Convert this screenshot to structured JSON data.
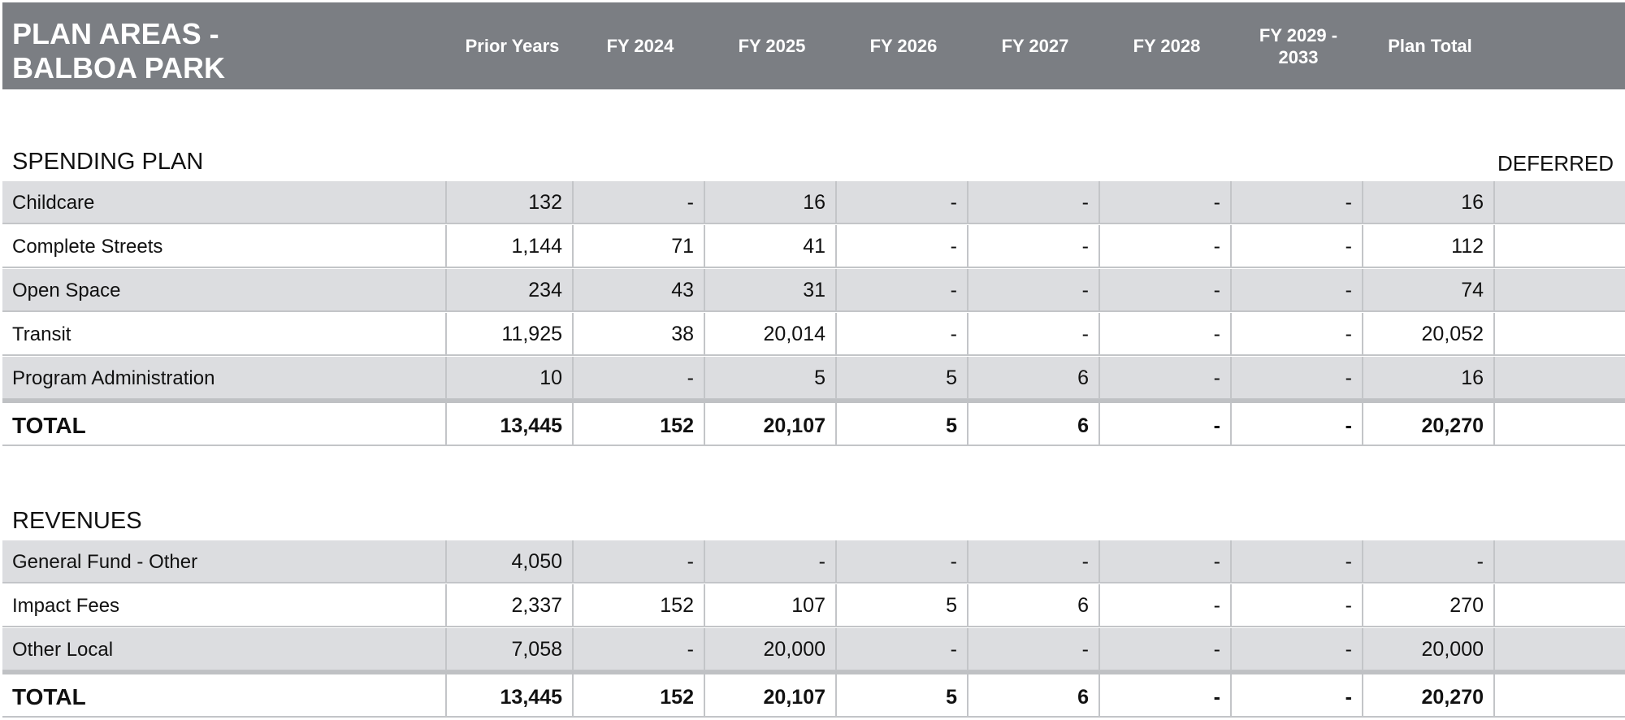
{
  "header": {
    "title_line1": "PLAN AREAS -",
    "title_line2": "BALBOA PARK",
    "columns": [
      "Prior Years",
      "FY 2024",
      "FY 2025",
      "FY 2026",
      "FY 2027",
      "FY 2028",
      "FY 2029 -\n2033",
      "Plan Total"
    ]
  },
  "spending": {
    "title": "SPENDING PLAN",
    "deferred": "DEFERRED",
    "rows": [
      {
        "label": "Childcare",
        "values": [
          "132",
          "-",
          "16",
          "-",
          "-",
          "-",
          "-",
          "16",
          ""
        ]
      },
      {
        "label": "Complete Streets",
        "values": [
          "1,144",
          "71",
          "41",
          "-",
          "-",
          "-",
          "-",
          "112",
          ""
        ]
      },
      {
        "label": "Open Space",
        "values": [
          "234",
          "43",
          "31",
          "-",
          "-",
          "-",
          "-",
          "74",
          ""
        ]
      },
      {
        "label": "Transit",
        "values": [
          "11,925",
          "38",
          "20,014",
          "-",
          "-",
          "-",
          "-",
          "20,052",
          ""
        ]
      },
      {
        "label": "Program Administration",
        "values": [
          "10",
          "-",
          "5",
          "5",
          "6",
          "-",
          "-",
          "16",
          ""
        ]
      }
    ],
    "total": {
      "label": "TOTAL",
      "values": [
        "13,445",
        "152",
        "20,107",
        "5",
        "6",
        "-",
        "-",
        "20,270",
        ""
      ]
    }
  },
  "revenues": {
    "title": "REVENUES",
    "rows": [
      {
        "label": "General Fund - Other",
        "values": [
          "4,050",
          "-",
          "-",
          "-",
          "-",
          "-",
          "-",
          "-",
          ""
        ]
      },
      {
        "label": "Impact Fees",
        "values": [
          "2,337",
          "152",
          "107",
          "5",
          "6",
          "-",
          "-",
          "270",
          ""
        ]
      },
      {
        "label": "Other Local",
        "values": [
          "7,058",
          "-",
          "20,000",
          "-",
          "-",
          "-",
          "-",
          "20,000",
          ""
        ]
      }
    ],
    "total": {
      "label": "TOTAL",
      "values": [
        "13,445",
        "152",
        "20,107",
        "5",
        "6",
        "-",
        "-",
        "20,270",
        ""
      ]
    }
  }
}
